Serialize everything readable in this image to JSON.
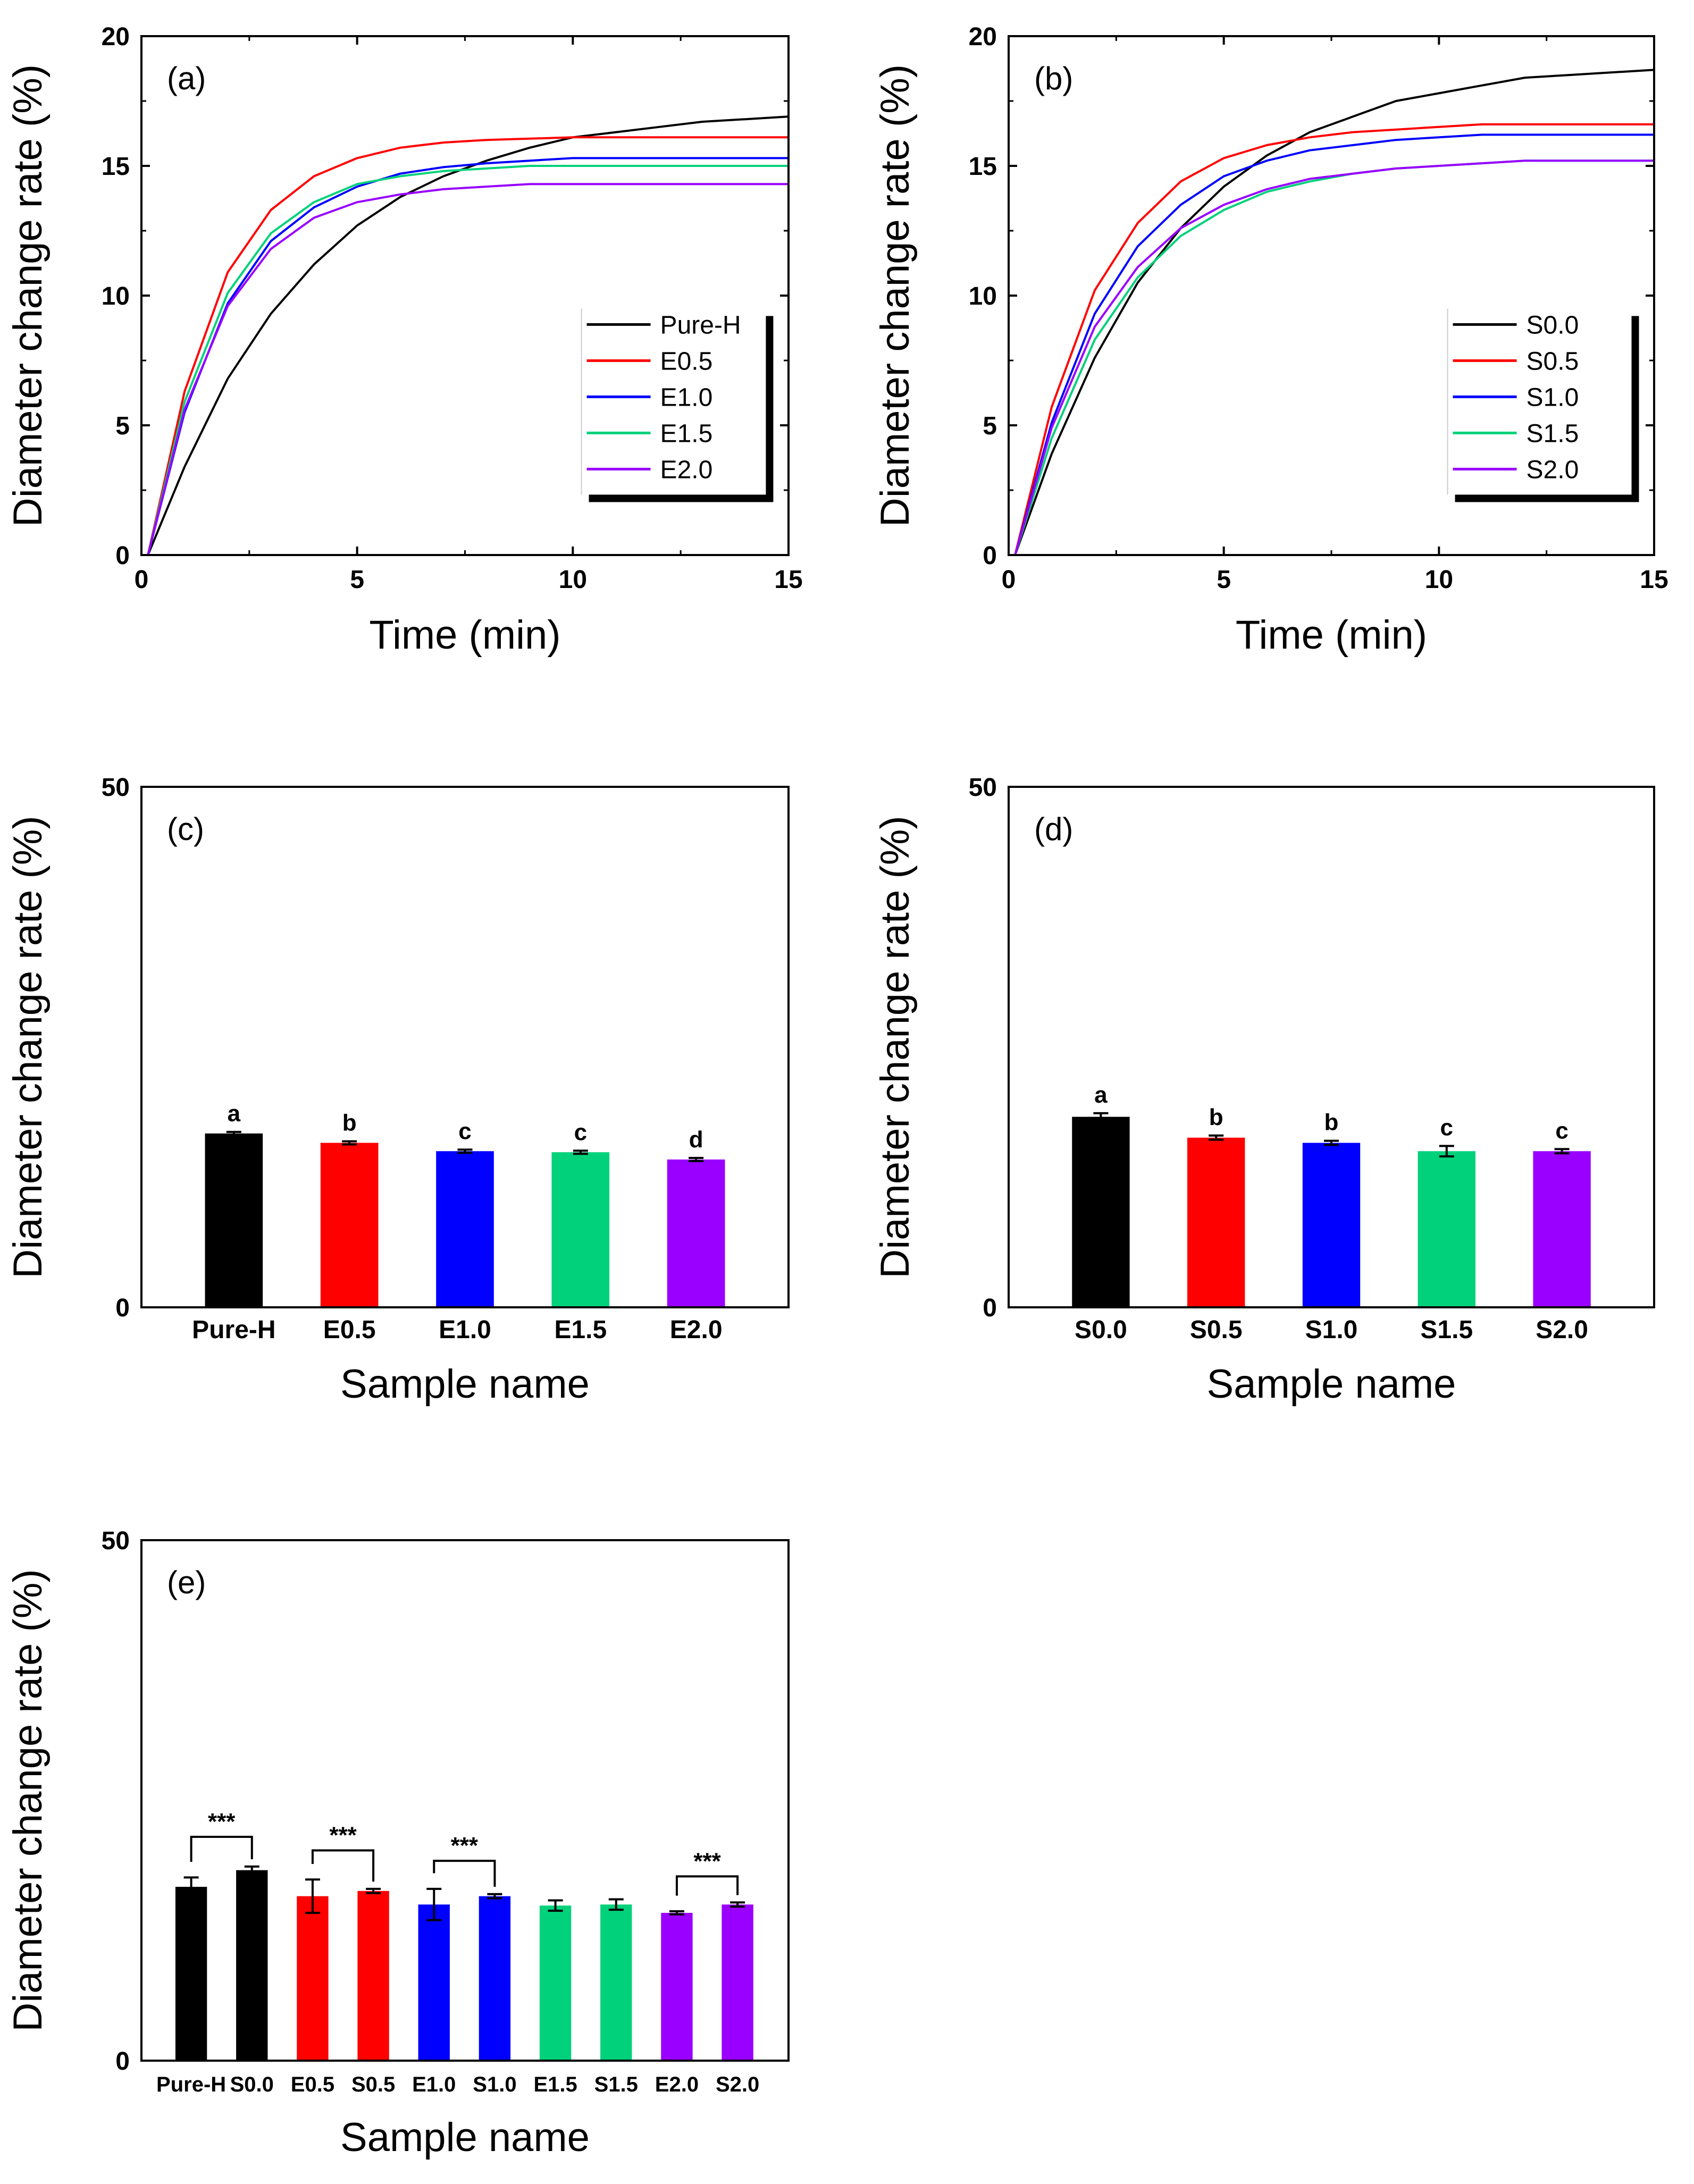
{
  "chart_data": [
    {
      "panel": "(a)",
      "type": "line",
      "xlabel": "Time (min)",
      "ylabel": "Diameter change rate (%)",
      "xlim": [
        0,
        15
      ],
      "ylim": [
        0,
        20
      ],
      "xticks": [
        "0",
        "5",
        "10",
        "15"
      ],
      "yticks": [
        "0",
        "5",
        "10",
        "15",
        "20"
      ],
      "legend_position": "center-right",
      "x": [
        0,
        1,
        2,
        3,
        4,
        5,
        6,
        7,
        8,
        9,
        10,
        11,
        12,
        13,
        14,
        15
      ],
      "series": [
        {
          "name": "Pure-H",
          "color": "#000000",
          "values": [
            0,
            3.4,
            6.8,
            9.3,
            11.2,
            12.7,
            13.8,
            14.6,
            15.2,
            15.7,
            16.1,
            16.3,
            16.5,
            16.7,
            16.8,
            16.9
          ]
        },
        {
          "name": "E0.5",
          "color": "#ff0000",
          "values": [
            0,
            6.3,
            10.9,
            13.3,
            14.6,
            15.3,
            15.7,
            15.9,
            16.0,
            16.05,
            16.1,
            16.1,
            16.1,
            16.1,
            16.1,
            16.1
          ]
        },
        {
          "name": "E1.0",
          "color": "#0000ff",
          "values": [
            0,
            5.5,
            9.7,
            12.1,
            13.4,
            14.2,
            14.7,
            14.95,
            15.1,
            15.2,
            15.3,
            15.3,
            15.3,
            15.3,
            15.3,
            15.3
          ]
        },
        {
          "name": "E1.5",
          "color": "#00d17a",
          "values": [
            0,
            5.9,
            10.1,
            12.4,
            13.6,
            14.3,
            14.6,
            14.8,
            14.9,
            15.0,
            15.0,
            15.0,
            15.0,
            15.0,
            15.0,
            15.0
          ]
        },
        {
          "name": "E2.0",
          "color": "#9900ff",
          "values": [
            0,
            5.6,
            9.6,
            11.8,
            13.0,
            13.6,
            13.9,
            14.1,
            14.2,
            14.3,
            14.3,
            14.3,
            14.3,
            14.3,
            14.3,
            14.3
          ]
        }
      ]
    },
    {
      "panel": "(b)",
      "type": "line",
      "xlabel": "Time (min)",
      "ylabel": "Diameter change rate (%)",
      "xlim": [
        0,
        15
      ],
      "ylim": [
        0,
        20
      ],
      "xticks": [
        "0",
        "5",
        "10",
        "15"
      ],
      "yticks": [
        "0",
        "5",
        "10",
        "15",
        "20"
      ],
      "legend_position": "center-right",
      "x": [
        0,
        1,
        2,
        3,
        4,
        5,
        6,
        7,
        8,
        9,
        10,
        11,
        12,
        13,
        14,
        15
      ],
      "series": [
        {
          "name": "S0.0",
          "color": "#000000",
          "values": [
            0,
            3.9,
            7.6,
            10.5,
            12.6,
            14.2,
            15.4,
            16.3,
            16.9,
            17.5,
            17.8,
            18.1,
            18.4,
            18.5,
            18.6,
            18.7
          ]
        },
        {
          "name": "S0.5",
          "color": "#ff0000",
          "values": [
            0,
            5.7,
            10.2,
            12.8,
            14.4,
            15.3,
            15.8,
            16.1,
            16.3,
            16.4,
            16.5,
            16.6,
            16.6,
            16.6,
            16.6,
            16.6
          ]
        },
        {
          "name": "S1.0",
          "color": "#0000ff",
          "values": [
            0,
            5.1,
            9.3,
            11.9,
            13.5,
            14.6,
            15.2,
            15.6,
            15.8,
            16.0,
            16.1,
            16.2,
            16.2,
            16.2,
            16.2,
            16.2
          ]
        },
        {
          "name": "S1.5",
          "color": "#00d17a",
          "values": [
            0,
            4.5,
            8.3,
            10.7,
            12.3,
            13.3,
            14.0,
            14.4,
            14.7,
            14.9,
            15.0,
            15.1,
            15.2,
            15.2,
            15.2,
            15.2
          ]
        },
        {
          "name": "S2.0",
          "color": "#9900ff",
          "values": [
            0,
            4.9,
            8.8,
            11.1,
            12.6,
            13.5,
            14.1,
            14.5,
            14.7,
            14.9,
            15.0,
            15.1,
            15.2,
            15.2,
            15.2,
            15.2
          ]
        }
      ]
    },
    {
      "panel": "(c)",
      "type": "bar",
      "xlabel": "Sample name",
      "ylabel": "Diameter change rate (%)",
      "ylim": [
        0,
        50
      ],
      "yticks": [
        "0",
        "50"
      ],
      "categories": [
        "Pure-H",
        "E0.5",
        "E1.0",
        "E1.5",
        "E2.0"
      ],
      "values": [
        16.7,
        15.8,
        15.0,
        14.9,
        14.2
      ],
      "errors": [
        0.15,
        0.15,
        0.15,
        0.15,
        0.15
      ],
      "colors": [
        "#000000",
        "#ff0000",
        "#0000ff",
        "#00d17a",
        "#9900ff"
      ],
      "letters": [
        "a",
        "b",
        "c",
        "c",
        "d"
      ]
    },
    {
      "panel": "(d)",
      "type": "bar",
      "xlabel": "Sample name",
      "ylabel": "Diameter change rate (%)",
      "ylim": [
        0,
        50
      ],
      "yticks": [
        "0",
        "50"
      ],
      "categories": [
        "S0.0",
        "S0.5",
        "S1.0",
        "S1.5",
        "S2.0"
      ],
      "values": [
        18.3,
        16.3,
        15.8,
        15.0,
        15.0
      ],
      "errors": [
        0.35,
        0.2,
        0.2,
        0.5,
        0.2
      ],
      "colors": [
        "#000000",
        "#ff0000",
        "#0000ff",
        "#00d17a",
        "#9900ff"
      ],
      "letters": [
        "a",
        "b",
        "b",
        "c",
        "c"
      ]
    },
    {
      "panel": "(e)",
      "type": "bar",
      "xlabel": "Sample name",
      "ylabel": "Diameter change rate (%)",
      "ylim": [
        0,
        50
      ],
      "yticks": [
        "0",
        "50"
      ],
      "categories": [
        "Pure-H",
        "S0.0",
        "E0.5",
        "S0.5",
        "E1.0",
        "S1.0",
        "E1.5",
        "S1.5",
        "E2.0",
        "S2.0"
      ],
      "values": [
        16.7,
        18.3,
        15.8,
        16.3,
        15.0,
        15.8,
        14.9,
        15.0,
        14.2,
        15.0
      ],
      "errors": [
        0.9,
        0.35,
        1.6,
        0.2,
        1.5,
        0.2,
        0.5,
        0.5,
        0.15,
        0.2
      ],
      "colors": [
        "#000000",
        "#000000",
        "#ff0000",
        "#ff0000",
        "#0000ff",
        "#0000ff",
        "#00d17a",
        "#00d17a",
        "#9900ff",
        "#9900ff"
      ],
      "significance": [
        {
          "pair": [
            0,
            1
          ],
          "label": "***",
          "level": 21.5
        },
        {
          "pair": [
            2,
            3
          ],
          "label": "***",
          "level": 20.2
        },
        {
          "pair": [
            4,
            5
          ],
          "label": "***",
          "level": 19.2
        },
        {
          "pair": [
            8,
            9
          ],
          "label": "***",
          "level": 17.7
        }
      ]
    }
  ]
}
